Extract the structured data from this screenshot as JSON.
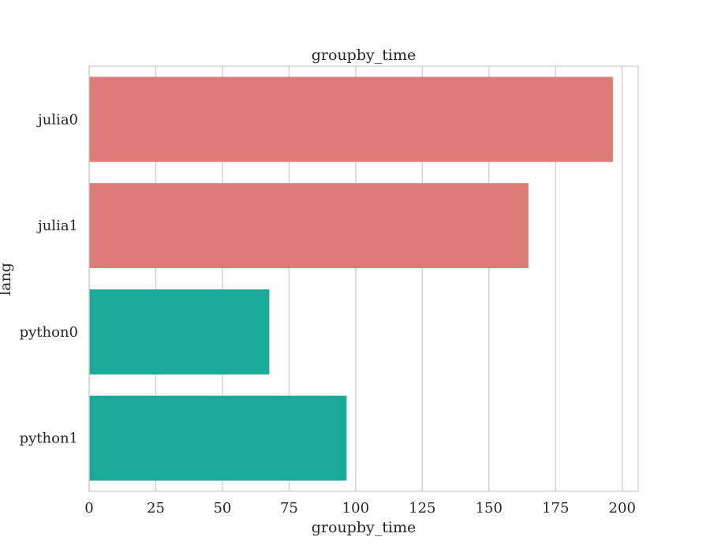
{
  "chart_data": {
    "type": "bar",
    "orientation": "horizontal",
    "title": "groupby_time",
    "xlabel": "groupby_time",
    "ylabel": "lang",
    "categories": [
      "julia0",
      "julia1",
      "python0",
      "python1"
    ],
    "values": [
      196.5,
      164.8,
      67.6,
      96.6
    ],
    "bar_colors": [
      "#dd7b78",
      "#dd7b78",
      "#1aa898",
      "#1aa898"
    ],
    "xlim": [
      0,
      206
    ],
    "xticks": [
      0,
      25,
      50,
      75,
      100,
      125,
      150,
      175,
      200
    ],
    "grid": true
  }
}
